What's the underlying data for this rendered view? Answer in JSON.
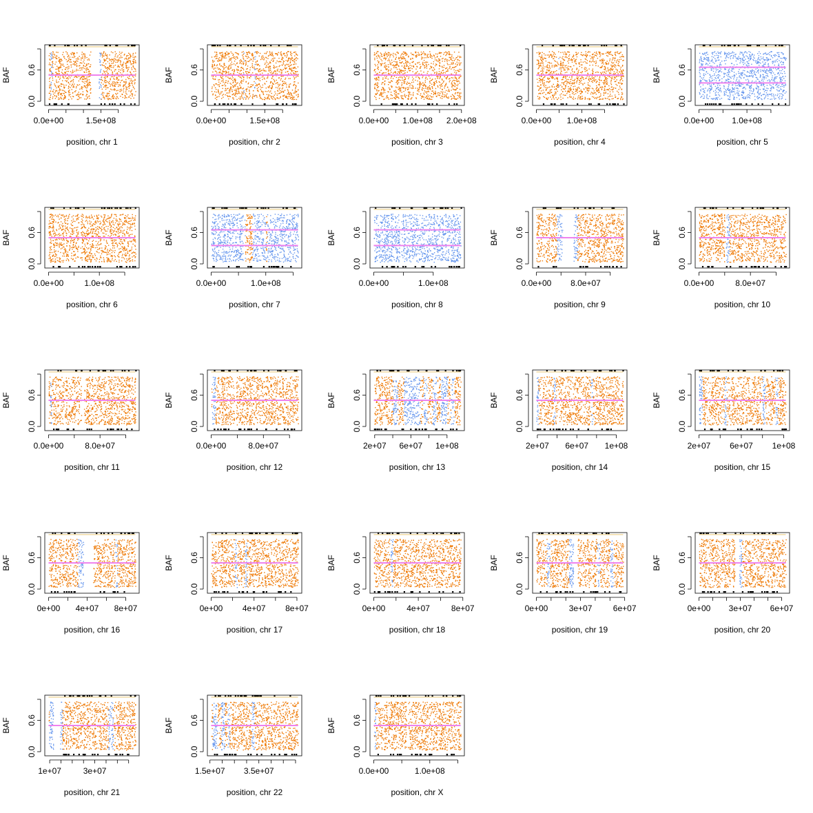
{
  "figure": {
    "ylabel": "BAF",
    "yticks": [
      "0.0",
      "0.6"
    ]
  },
  "colors": {
    "het": "#ee7700",
    "loh": "#6495ed",
    "hom": "#000000",
    "ratio": "#ee82ee",
    "edge": "#daa520"
  },
  "chart_data": [
    {
      "type": "scatter",
      "xlabel": "position, chr 1",
      "ylabel": "BAF",
      "xlim": [
        0,
        249000000
      ],
      "ylim": [
        0,
        1
      ],
      "xticks": [
        {
          "v": 0,
          "label": "0.0e+00"
        },
        {
          "v": 150000000,
          "label": "1.5e+08"
        }
      ],
      "tick_values": [
        0,
        50000000,
        100000000,
        150000000,
        200000000
      ],
      "baseline": "het",
      "gaps": [
        [
          120000000,
          143000000
        ]
      ],
      "loh": [
        [
          5000000,
          9000000
        ],
        [
          143000000,
          150000000
        ]
      ],
      "means": [
        0.5
      ]
    },
    {
      "type": "scatter",
      "xlabel": "position, chr 2",
      "ylabel": "BAF",
      "xlim": [
        0,
        243000000
      ],
      "ylim": [
        0,
        1
      ],
      "xticks": [
        {
          "v": 0,
          "label": "0.0e+00"
        },
        {
          "v": 150000000,
          "label": "1.5e+08"
        }
      ],
      "tick_values": [
        0,
        50000000,
        100000000,
        150000000,
        200000000
      ],
      "baseline": "het",
      "gaps": [
        [
          92000000,
          95000000
        ]
      ],
      "loh": [
        [
          90000000,
          92000000
        ],
        [
          120000000,
          123000000
        ]
      ],
      "means": [
        0.5
      ]
    },
    {
      "type": "scatter",
      "xlabel": "position, chr 3",
      "ylabel": "BAF",
      "xlim": [
        0,
        198000000
      ],
      "ylim": [
        0,
        1
      ],
      "xticks": [
        {
          "v": 0,
          "label": "0.0e+00"
        },
        {
          "v": 100000000,
          "label": "1.0e+08"
        },
        {
          "v": 200000000,
          "label": "2.0e+08"
        }
      ],
      "tick_values": [
        0,
        50000000,
        100000000,
        150000000,
        200000000
      ],
      "baseline": "het",
      "gaps": [
        [
          90000000,
          93000000
        ]
      ],
      "loh": [],
      "means": [
        0.5
      ]
    },
    {
      "type": "scatter",
      "xlabel": "position, chr 4",
      "ylabel": "BAF",
      "xlim": [
        0,
        191000000
      ],
      "ylim": [
        0,
        1
      ],
      "xticks": [
        {
          "v": 0,
          "label": "0.0e+00"
        },
        {
          "v": 100000000,
          "label": "1.0e+08"
        }
      ],
      "tick_values": [
        0,
        50000000,
        100000000,
        150000000
      ],
      "baseline": "het",
      "gaps": [
        [
          49000000,
          51000000
        ]
      ],
      "loh": [
        [
          48000000,
          50000000
        ]
      ],
      "means": [
        0.5
      ]
    },
    {
      "type": "scatter",
      "xlabel": "position, chr 5",
      "ylabel": "BAF",
      "xlim": [
        0,
        181000000
      ],
      "ylim": [
        0,
        1
      ],
      "xticks": [
        {
          "v": 0,
          "label": "0.0e+00"
        },
        {
          "v": 100000000,
          "label": "1.0e+08"
        }
      ],
      "tick_values": [
        0,
        50000000,
        100000000,
        150000000
      ],
      "baseline": "loh",
      "gaps": [
        [
          47000000,
          50000000
        ]
      ],
      "loh": [],
      "means": [
        0.35,
        0.65
      ]
    },
    {
      "type": "scatter",
      "xlabel": "position, chr 6",
      "ylabel": "BAF",
      "xlim": [
        0,
        171000000
      ],
      "ylim": [
        0,
        1
      ],
      "xticks": [
        {
          "v": 0,
          "label": "0.0e+00"
        },
        {
          "v": 100000000,
          "label": "1.0e+08"
        }
      ],
      "tick_values": [
        0,
        50000000,
        100000000,
        150000000
      ],
      "baseline": "het",
      "gaps": [
        [
          59000000,
          62000000
        ]
      ],
      "loh": [],
      "means": [
        0.5
      ]
    },
    {
      "type": "scatter",
      "xlabel": "position, chr 7",
      "ylabel": "BAF",
      "xlim": [
        0,
        159000000
      ],
      "ylim": [
        0,
        1
      ],
      "xticks": [
        {
          "v": 0,
          "label": "0.0e+00"
        },
        {
          "v": 100000000,
          "label": "1.0e+08"
        }
      ],
      "tick_values": [
        0,
        50000000,
        100000000,
        150000000
      ],
      "baseline": "loh",
      "gaps": [
        [
          58000000,
          61000000
        ]
      ],
      "loh": [],
      "het": [
        [
          62000000,
          75000000
        ],
        [
          100000000,
          102000000
        ]
      ],
      "means": [
        0.35,
        0.65
      ]
    },
    {
      "type": "scatter",
      "xlabel": "position, chr 8",
      "ylabel": "BAF",
      "xlim": [
        0,
        146000000
      ],
      "ylim": [
        0,
        1
      ],
      "xticks": [
        {
          "v": 0,
          "label": "0.0e+00"
        },
        {
          "v": 100000000,
          "label": "1.0e+08"
        }
      ],
      "tick_values": [
        0,
        50000000,
        100000000
      ],
      "baseline": "loh",
      "gaps": [
        [
          43000000,
          46000000
        ]
      ],
      "loh": [],
      "means": [
        0.35,
        0.65
      ]
    },
    {
      "type": "scatter",
      "xlabel": "position, chr 9",
      "ylabel": "BAF",
      "xlim": [
        0,
        141000000
      ],
      "ylim": [
        0,
        1
      ],
      "xticks": [
        {
          "v": 0,
          "label": "0.0e+00"
        },
        {
          "v": 80000000,
          "label": "8.0e+07"
        }
      ],
      "tick_values": [
        0,
        40000000,
        80000000,
        120000000
      ],
      "baseline": "het",
      "gaps": [
        [
          42000000,
          60000000
        ]
      ],
      "loh": [
        [
          33000000,
          42000000
        ],
        [
          60000000,
          66000000
        ]
      ],
      "means": [
        0.5
      ]
    },
    {
      "type": "scatter",
      "xlabel": "position, chr 10",
      "ylabel": "BAF",
      "xlim": [
        0,
        135000000
      ],
      "ylim": [
        0,
        1
      ],
      "xticks": [
        {
          "v": 0,
          "label": "0.0e+00"
        },
        {
          "v": 80000000,
          "label": "8.0e+07"
        }
      ],
      "tick_values": [
        0,
        40000000,
        80000000,
        120000000
      ],
      "baseline": "het",
      "gaps": [
        [
          40000000,
          42000000
        ]
      ],
      "loh": [
        [
          42000000,
          47000000
        ]
      ],
      "means": [
        0.5
      ]
    },
    {
      "type": "scatter",
      "xlabel": "position, chr 11",
      "ylabel": "BAF",
      "xlim": [
        0,
        135000000
      ],
      "ylim": [
        0,
        1
      ],
      "xticks": [
        {
          "v": 0,
          "label": "0.0e+00"
        },
        {
          "v": 80000000,
          "label": "8.0e+07"
        }
      ],
      "tick_values": [
        0,
        40000000,
        80000000,
        120000000
      ],
      "baseline": "het",
      "gaps": [
        [
          51000000,
          55000000
        ]
      ],
      "loh": [
        [
          2000000,
          4000000
        ]
      ],
      "means": [
        0.5
      ]
    },
    {
      "type": "scatter",
      "xlabel": "position, chr 12",
      "ylabel": "BAF",
      "xlim": [
        0,
        133000000
      ],
      "ylim": [
        0,
        1
      ],
      "xticks": [
        {
          "v": 0,
          "label": "0.0e+00"
        },
        {
          "v": 80000000,
          "label": "8.0e+07"
        }
      ],
      "tick_values": [
        0,
        40000000,
        80000000,
        120000000
      ],
      "baseline": "het",
      "gaps": [
        [
          35000000,
          38000000
        ]
      ],
      "loh": [
        [
          1000000,
          6000000
        ]
      ],
      "means": [
        0.5
      ]
    },
    {
      "type": "scatter",
      "xlabel": "position, chr 13",
      "ylabel": "BAF",
      "xlim": [
        19000000,
        115000000
      ],
      "ylim": [
        0,
        1
      ],
      "xticks": [
        {
          "v": 20000000,
          "label": "2e+07"
        },
        {
          "v": 60000000,
          "label": "6e+07"
        },
        {
          "v": 100000000,
          "label": "1e+08"
        }
      ],
      "tick_values": [
        20000000,
        40000000,
        60000000,
        80000000,
        100000000
      ],
      "baseline": "het",
      "gaps": [],
      "loh": [
        [
          40000000,
          45000000
        ],
        [
          52000000,
          70000000
        ],
        [
          74000000,
          78000000
        ],
        [
          84000000,
          88000000
        ],
        [
          93000000,
          100000000
        ],
        [
          104000000,
          108000000
        ]
      ],
      "means": [
        0.5
      ]
    },
    {
      "type": "scatter",
      "xlabel": "position, chr 14",
      "ylabel": "BAF",
      "xlim": [
        19000000,
        107000000
      ],
      "ylim": [
        0,
        1
      ],
      "xticks": [
        {
          "v": 20000000,
          "label": "2e+07"
        },
        {
          "v": 60000000,
          "label": "6e+07"
        },
        {
          "v": 100000000,
          "label": "1e+08"
        }
      ],
      "tick_values": [
        20000000,
        40000000,
        60000000,
        80000000,
        100000000
      ],
      "baseline": "het",
      "gaps": [],
      "loh": [
        [
          19000000,
          21000000
        ],
        [
          36000000,
          38000000
        ],
        [
          74000000,
          76000000
        ]
      ],
      "means": [
        0.5
      ]
    },
    {
      "type": "scatter",
      "xlabel": "position, chr 15",
      "ylabel": "BAF",
      "xlim": [
        20000000,
        102000000
      ],
      "ylim": [
        0,
        1
      ],
      "xticks": [
        {
          "v": 20000000,
          "label": "2e+07"
        },
        {
          "v": 60000000,
          "label": "6e+07"
        },
        {
          "v": 100000000,
          "label": "1e+08"
        }
      ],
      "tick_values": [
        20000000,
        40000000,
        60000000,
        80000000,
        100000000
      ],
      "baseline": "het",
      "gaps": [],
      "loh": [
        [
          20000000,
          23000000
        ],
        [
          44000000,
          46000000
        ],
        [
          80000000,
          82000000
        ],
        [
          92000000,
          94000000
        ]
      ],
      "means": [
        0.5
      ]
    },
    {
      "type": "scatter",
      "xlabel": "position, chr 16",
      "ylabel": "BAF",
      "xlim": [
        0,
        90000000
      ],
      "ylim": [
        0,
        1
      ],
      "xticks": [
        {
          "v": 0,
          "label": "0e+00"
        },
        {
          "v": 40000000,
          "label": "4e+07"
        },
        {
          "v": 80000000,
          "label": "8e+07"
        }
      ],
      "tick_values": [
        0,
        20000000,
        40000000,
        60000000,
        80000000
      ],
      "baseline": "het",
      "gaps": [
        [
          36000000,
          46000000
        ]
      ],
      "loh": [
        [
          30000000,
          36000000
        ],
        [
          69000000,
          71000000
        ]
      ],
      "means": [
        0.5
      ]
    },
    {
      "type": "scatter",
      "xlabel": "position, chr 17",
      "ylabel": "BAF",
      "xlim": [
        0,
        81000000
      ],
      "ylim": [
        0,
        1
      ],
      "xticks": [
        {
          "v": 0,
          "label": "0e+00"
        },
        {
          "v": 40000000,
          "label": "4e+07"
        },
        {
          "v": 80000000,
          "label": "8e+07"
        }
      ],
      "tick_values": [
        0,
        20000000,
        40000000,
        60000000,
        80000000
      ],
      "baseline": "het",
      "gaps": [],
      "loh": [
        [
          22000000,
          24000000
        ],
        [
          31000000,
          33000000
        ]
      ],
      "means": [
        0.5
      ]
    },
    {
      "type": "scatter",
      "xlabel": "position, chr 18",
      "ylabel": "BAF",
      "xlim": [
        0,
        78000000
      ],
      "ylim": [
        0,
        1
      ],
      "xticks": [
        {
          "v": 0,
          "label": "0e+00"
        },
        {
          "v": 40000000,
          "label": "4e+07"
        },
        {
          "v": 80000000,
          "label": "8e+07"
        }
      ],
      "tick_values": [
        0,
        20000000,
        40000000,
        60000000,
        80000000
      ],
      "baseline": "het",
      "gaps": [],
      "loh": [
        [
          15000000,
          17000000
        ]
      ],
      "means": [
        0.5
      ]
    },
    {
      "type": "scatter",
      "xlabel": "position, chr 19",
      "ylabel": "BAF",
      "xlim": [
        0,
        59000000
      ],
      "ylim": [
        0,
        1
      ],
      "xticks": [
        {
          "v": 0,
          "label": "0e+00"
        },
        {
          "v": 30000000,
          "label": "3e+07"
        },
        {
          "v": 60000000,
          "label": "6e+07"
        }
      ],
      "tick_values": [
        0,
        10000000,
        20000000,
        30000000,
        40000000,
        50000000,
        60000000
      ],
      "baseline": "het",
      "gaps": [
        [
          25000000,
          28000000
        ]
      ],
      "loh": [
        [
          7000000,
          9000000
        ],
        [
          22000000,
          25000000
        ],
        [
          41000000,
          43000000
        ],
        [
          50000000,
          52000000
        ]
      ],
      "means": [
        0.5
      ]
    },
    {
      "type": "scatter",
      "xlabel": "position, chr 20",
      "ylabel": "BAF",
      "xlim": [
        0,
        63000000
      ],
      "ylim": [
        0,
        1
      ],
      "xticks": [
        {
          "v": 0,
          "label": "0e+00"
        },
        {
          "v": 30000000,
          "label": "3e+07"
        },
        {
          "v": 60000000,
          "label": "6e+07"
        }
      ],
      "tick_values": [
        0,
        10000000,
        20000000,
        30000000,
        40000000,
        50000000,
        60000000
      ],
      "baseline": "het",
      "gaps": [
        [
          26000000,
          29000000
        ]
      ],
      "loh": [
        [
          29000000,
          31000000
        ]
      ],
      "means": [
        0.5
      ]
    },
    {
      "type": "scatter",
      "xlabel": "position, chr 21",
      "ylabel": "BAF",
      "xlim": [
        9500000,
        48000000
      ],
      "ylim": [
        0,
        1
      ],
      "xticks": [
        {
          "v": 10000000,
          "label": "1e+07"
        },
        {
          "v": 30000000,
          "label": "3e+07"
        }
      ],
      "tick_values": [
        10000000,
        15000000,
        20000000,
        25000000,
        30000000,
        35000000,
        40000000,
        45000000
      ],
      "baseline": "het",
      "gaps": [
        [
          11500000,
          14500000
        ]
      ],
      "loh": [
        [
          9700000,
          11500000
        ],
        [
          14500000,
          15500000
        ],
        [
          36000000,
          38000000
        ]
      ],
      "means": [
        0.5
      ]
    },
    {
      "type": "scatter",
      "xlabel": "position, chr 22",
      "ylabel": "BAF",
      "xlim": [
        15500000,
        51000000
      ],
      "ylim": [
        0,
        1
      ],
      "xticks": [
        {
          "v": 15000000,
          "label": "1.5e+07"
        },
        {
          "v": 35000000,
          "label": "3.5e+07"
        }
      ],
      "tick_values": [
        15000000,
        20000000,
        25000000,
        30000000,
        35000000,
        40000000,
        45000000,
        50000000
      ],
      "baseline": "het",
      "gaps": [],
      "loh": [
        [
          16000000,
          18000000
        ],
        [
          19500000,
          21000000
        ],
        [
          22000000,
          23000000
        ],
        [
          32000000,
          33000000
        ]
      ],
      "means": [
        0.5
      ]
    },
    {
      "type": "scatter",
      "xlabel": "position, chr X",
      "ylabel": "BAF",
      "xlim": [
        0,
        155000000
      ],
      "ylim": [
        0,
        1
      ],
      "xticks": [
        {
          "v": 0,
          "label": "0.0e+00"
        },
        {
          "v": 100000000,
          "label": "1.0e+08"
        }
      ],
      "tick_values": [
        0,
        50000000,
        100000000,
        150000000
      ],
      "baseline": "het",
      "gaps": [
        [
          58000000,
          61000000
        ]
      ],
      "loh": [
        [
          1000000,
          3000000
        ]
      ],
      "means": [
        0.5
      ]
    }
  ]
}
